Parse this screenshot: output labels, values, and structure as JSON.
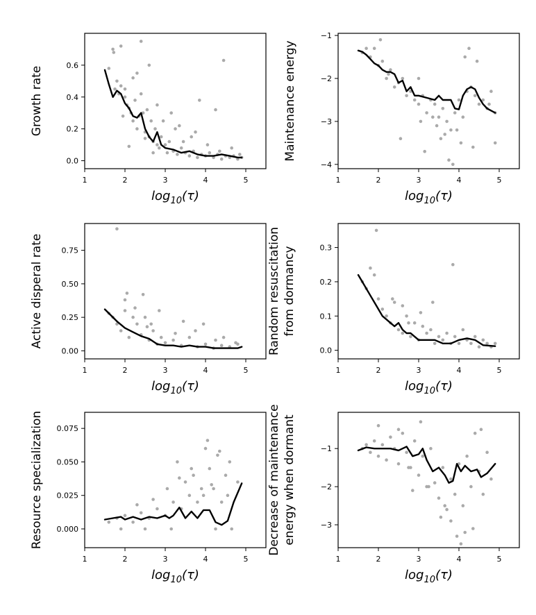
{
  "chart_data": [
    {
      "type": "scatter",
      "title": "",
      "xlabel": "log10(τ)",
      "ylabel": "Growth rate",
      "xlim": [
        1,
        5.5
      ],
      "ylim": [
        -0.05,
        0.8
      ],
      "xticks": [
        1,
        2,
        3,
        4,
        5
      ],
      "yticks": [
        0.0,
        0.2,
        0.4,
        0.6
      ],
      "ytick_labels": [
        "0.0",
        "0.2",
        "0.4",
        "0.6"
      ],
      "point_color": "#aaaaaa",
      "line_color": "#000000",
      "points": {
        "x": [
          1.6,
          1.7,
          1.75,
          1.8,
          1.85,
          1.9,
          1.95,
          2.0,
          2.05,
          2.1,
          2.15,
          2.2,
          2.25,
          2.3,
          2.35,
          2.4,
          2.45,
          2.5,
          2.55,
          2.6,
          2.65,
          2.7,
          2.75,
          2.8,
          2.85,
          2.9,
          3.0,
          3.05,
          3.1,
          3.2,
          3.3,
          3.4,
          3.5,
          3.6,
          3.7,
          3.8,
          3.9,
          4.0,
          4.1,
          4.2,
          4.3,
          4.4,
          4.5,
          4.6,
          4.7,
          4.8,
          4.9,
          1.72,
          1.9,
          2.1,
          2.6,
          2.3,
          2.95,
          3.25,
          4.45,
          3.85,
          4.25,
          2.0,
          2.4,
          2.7,
          3.15,
          3.45,
          3.75,
          4.05,
          4.35,
          4.65,
          4.85,
          2.2,
          2.5,
          2.8,
          3.35,
          3.65
        ],
        "y": [
          0.58,
          0.7,
          0.45,
          0.5,
          0.42,
          0.47,
          0.28,
          0.4,
          0.35,
          0.33,
          0.3,
          0.25,
          0.38,
          0.2,
          0.28,
          0.42,
          0.3,
          0.18,
          0.32,
          0.15,
          0.25,
          0.12,
          0.2,
          0.1,
          0.08,
          0.15,
          0.1,
          0.05,
          0.12,
          0.06,
          0.04,
          0.08,
          0.05,
          0.03,
          0.06,
          0.02,
          0.04,
          0.03,
          0.05,
          0.02,
          0.04,
          0.01,
          0.03,
          0.02,
          0.03,
          0.01,
          0.02,
          0.68,
          0.72,
          0.09,
          0.6,
          0.55,
          0.25,
          0.2,
          0.63,
          0.38,
          0.32,
          0.45,
          0.75,
          0.05,
          0.3,
          0.12,
          0.18,
          0.1,
          0.06,
          0.08,
          0.04,
          0.52,
          0.14,
          0.35,
          0.22,
          0.15
        ]
      },
      "trend": {
        "x": [
          1.5,
          1.6,
          1.7,
          1.8,
          1.9,
          2.0,
          2.1,
          2.2,
          2.3,
          2.4,
          2.5,
          2.6,
          2.7,
          2.8,
          2.9,
          3.0,
          3.2,
          3.4,
          3.6,
          3.8,
          4.0,
          4.2,
          4.4,
          4.6,
          4.8,
          4.9
        ],
        "y": [
          0.57,
          0.48,
          0.4,
          0.44,
          0.42,
          0.36,
          0.33,
          0.28,
          0.27,
          0.3,
          0.2,
          0.15,
          0.12,
          0.18,
          0.1,
          0.08,
          0.07,
          0.05,
          0.06,
          0.04,
          0.03,
          0.03,
          0.04,
          0.03,
          0.02,
          0.02
        ]
      }
    },
    {
      "type": "scatter",
      "title": "",
      "xlabel": "log10(τ)",
      "ylabel": "Maintenance energy",
      "xlim": [
        1,
        5.5
      ],
      "ylim": [
        -4.1,
        -0.95
      ],
      "xticks": [
        1,
        2,
        3,
        4,
        5
      ],
      "yticks": [
        -1,
        -2,
        -3,
        -4
      ],
      "ytick_labels": [
        "−1",
        "−2",
        "−3",
        "−4"
      ],
      "point_color": "#aaaaaa",
      "line_color": "#000000",
      "points": {
        "x": [
          1.6,
          1.7,
          1.8,
          1.9,
          2.0,
          2.1,
          2.2,
          2.3,
          2.4,
          2.5,
          2.6,
          2.7,
          2.8,
          2.9,
          3.0,
          3.1,
          3.2,
          3.3,
          3.4,
          3.5,
          3.6,
          3.7,
          3.8,
          3.9,
          4.0,
          4.1,
          4.2,
          4.3,
          4.4,
          4.5,
          4.6,
          4.7,
          4.8,
          4.9,
          2.05,
          3.05,
          3.55,
          3.75,
          3.95,
          4.15,
          4.35,
          2.55,
          3.35,
          3.85,
          4.05,
          4.25,
          4.75,
          2.25,
          3.15,
          3.65,
          4.45,
          4.9,
          3.0,
          3.45
        ],
        "y": [
          -1.4,
          -1.3,
          -1.5,
          -1.3,
          -1.7,
          -1.6,
          -2.0,
          -1.8,
          -2.2,
          -2.1,
          -2.0,
          -2.4,
          -2.3,
          -2.5,
          -2.6,
          -2.4,
          -2.8,
          -2.5,
          -2.6,
          -2.9,
          -2.7,
          -3.0,
          -3.2,
          -2.8,
          -2.5,
          -2.9,
          -2.3,
          -2.2,
          -2.4,
          -2.6,
          -2.5,
          -2.7,
          -2.3,
          -3.5,
          -1.1,
          -3.0,
          -3.4,
          -3.9,
          -3.2,
          -1.5,
          -3.6,
          -3.4,
          -2.9,
          -4.0,
          -3.5,
          -1.3,
          -2.6,
          -1.9,
          -3.7,
          -3.3,
          -1.6,
          -2.8,
          -2.0,
          -3.1
        ]
      },
      "trend": {
        "x": [
          1.5,
          1.6,
          1.7,
          1.8,
          1.9,
          2.0,
          2.1,
          2.2,
          2.3,
          2.4,
          2.5,
          2.6,
          2.7,
          2.8,
          2.9,
          3.0,
          3.2,
          3.4,
          3.5,
          3.6,
          3.8,
          3.9,
          4.0,
          4.1,
          4.2,
          4.3,
          4.4,
          4.5,
          4.6,
          4.7,
          4.8,
          4.9
        ],
        "y": [
          -1.35,
          -1.38,
          -1.45,
          -1.55,
          -1.65,
          -1.7,
          -1.8,
          -1.85,
          -1.85,
          -1.9,
          -2.1,
          -2.05,
          -2.3,
          -2.2,
          -2.4,
          -2.4,
          -2.45,
          -2.5,
          -2.4,
          -2.5,
          -2.5,
          -2.7,
          -2.72,
          -2.4,
          -2.25,
          -2.2,
          -2.25,
          -2.45,
          -2.6,
          -2.7,
          -2.75,
          -2.8
        ]
      }
    },
    {
      "type": "scatter",
      "title": "",
      "xlabel": "log10(τ)",
      "ylabel": "Active disperal rate",
      "xlim": [
        1,
        5.5
      ],
      "ylim": [
        -0.06,
        0.95
      ],
      "xticks": [
        1,
        2,
        3,
        4,
        5
      ],
      "yticks": [
        0.0,
        0.25,
        0.5,
        0.75
      ],
      "ytick_labels": [
        "0.00",
        "0.25",
        "0.50",
        "0.75"
      ],
      "point_color": "#aaaaaa",
      "line_color": "#000000",
      "points": {
        "x": [
          1.6,
          1.7,
          1.8,
          1.9,
          2.0,
          2.1,
          2.2,
          2.3,
          2.4,
          2.5,
          2.6,
          2.7,
          2.8,
          2.9,
          3.0,
          3.2,
          3.4,
          3.6,
          3.8,
          4.0,
          4.2,
          4.4,
          4.6,
          4.8,
          1.8,
          2.05,
          2.45,
          2.85,
          3.45,
          3.95,
          4.45,
          2.25,
          2.65,
          3.25,
          3.75,
          4.25,
          4.75,
          2.0,
          2.55
        ],
        "y": [
          0.28,
          0.25,
          0.2,
          0.15,
          0.3,
          0.1,
          0.25,
          0.2,
          0.12,
          0.25,
          0.08,
          0.15,
          0.05,
          0.1,
          0.06,
          0.08,
          0.04,
          0.1,
          0.03,
          0.05,
          0.02,
          0.04,
          0.03,
          0.05,
          0.91,
          0.43,
          0.42,
          0.3,
          0.22,
          0.2,
          0.1,
          0.32,
          0.2,
          0.13,
          0.15,
          0.08,
          0.06,
          0.38,
          0.18
        ]
      },
      "trend": {
        "x": [
          1.5,
          1.6,
          1.8,
          2.0,
          2.2,
          2.4,
          2.6,
          2.8,
          3.0,
          3.2,
          3.4,
          3.6,
          3.8,
          4.0,
          4.2,
          4.4,
          4.6,
          4.8,
          4.9
        ],
        "y": [
          0.31,
          0.28,
          0.22,
          0.17,
          0.14,
          0.11,
          0.09,
          0.05,
          0.04,
          0.04,
          0.03,
          0.04,
          0.03,
          0.03,
          0.02,
          0.02,
          0.02,
          0.02,
          0.03
        ]
      }
    },
    {
      "type": "scatter",
      "title": "",
      "xlabel": "log10(τ)",
      "ylabel": "Random resuscitation from dormancy",
      "xlim": [
        1,
        5.5
      ],
      "ylim": [
        -0.025,
        0.37
      ],
      "xticks": [
        1,
        2,
        3,
        4,
        5
      ],
      "yticks": [
        0.0,
        0.1,
        0.2,
        0.3
      ],
      "ytick_labels": [
        "0.0",
        "0.1",
        "0.2",
        "0.3"
      ],
      "point_color": "#aaaaaa",
      "line_color": "#000000",
      "points": {
        "x": [
          1.6,
          1.7,
          1.8,
          1.9,
          2.0,
          2.1,
          2.2,
          2.3,
          2.4,
          2.5,
          2.6,
          2.7,
          2.8,
          2.9,
          3.0,
          3.1,
          3.2,
          3.3,
          3.4,
          3.5,
          3.6,
          3.7,
          3.8,
          3.9,
          4.0,
          4.1,
          4.2,
          4.3,
          4.4,
          4.5,
          4.6,
          4.7,
          4.8,
          4.9,
          1.95,
          2.35,
          2.6,
          3.85,
          3.35,
          3.05,
          2.75
        ],
        "y": [
          0.2,
          0.18,
          0.24,
          0.22,
          0.15,
          0.12,
          0.1,
          0.08,
          0.14,
          0.06,
          0.05,
          0.1,
          0.04,
          0.08,
          0.03,
          0.07,
          0.05,
          0.06,
          0.02,
          0.04,
          0.03,
          0.05,
          0.02,
          0.04,
          0.02,
          0.06,
          0.03,
          0.02,
          0.04,
          0.01,
          0.03,
          0.02,
          0.01,
          0.02,
          0.35,
          0.15,
          0.13,
          0.25,
          0.14,
          0.11,
          0.08
        ]
      },
      "trend": {
        "x": [
          1.5,
          1.6,
          1.7,
          1.8,
          1.9,
          2.0,
          2.1,
          2.2,
          2.3,
          2.4,
          2.5,
          2.6,
          2.7,
          2.8,
          2.9,
          3.0,
          3.2,
          3.4,
          3.6,
          3.8,
          4.0,
          4.2,
          4.4,
          4.6,
          4.9
        ],
        "y": [
          0.22,
          0.2,
          0.18,
          0.16,
          0.14,
          0.12,
          0.1,
          0.09,
          0.08,
          0.07,
          0.08,
          0.06,
          0.05,
          0.05,
          0.04,
          0.03,
          0.03,
          0.03,
          0.02,
          0.02,
          0.03,
          0.035,
          0.03,
          0.015,
          0.012
        ]
      }
    },
    {
      "type": "scatter",
      "title": "",
      "xlabel": "log10(τ)",
      "ylabel": "Resource specialization",
      "xlim": [
        1,
        5.5
      ],
      "ylim": [
        -0.014,
        0.087
      ],
      "xticks": [
        1,
        2,
        3,
        4,
        5
      ],
      "yticks": [
        0.0,
        0.025,
        0.05,
        0.075
      ],
      "ytick_labels": [
        "0.000",
        "0.025",
        "0.050",
        "0.075"
      ],
      "point_color": "#aaaaaa",
      "line_color": "#000000",
      "points": {
        "x": [
          1.6,
          1.8,
          2.0,
          2.2,
          2.4,
          2.6,
          2.8,
          3.0,
          3.2,
          3.3,
          3.4,
          3.5,
          3.6,
          3.7,
          3.8,
          3.9,
          4.0,
          4.1,
          4.2,
          4.3,
          4.4,
          4.5,
          4.6,
          4.8,
          2.3,
          2.7,
          3.05,
          3.35,
          3.65,
          3.95,
          4.05,
          4.15,
          4.35,
          4.55,
          1.9,
          2.5,
          3.15,
          4.25,
          4.65
        ],
        "y": [
          0.005,
          0.008,
          0.01,
          0.005,
          0.012,
          0.008,
          0.015,
          0.01,
          0.02,
          0.05,
          0.015,
          0.035,
          0.025,
          0.04,
          0.02,
          0.03,
          0.06,
          0.045,
          0.03,
          0.055,
          0.02,
          0.04,
          0.05,
          0.035,
          0.018,
          0.022,
          0.03,
          0.038,
          0.045,
          0.025,
          0.066,
          0.033,
          0.058,
          0.025,
          0.0,
          0.0,
          0.0,
          0.0,
          0.0
        ]
      },
      "trend": {
        "x": [
          1.5,
          1.7,
          1.9,
          2.0,
          2.2,
          2.4,
          2.6,
          2.8,
          3.0,
          3.1,
          3.2,
          3.35,
          3.5,
          3.65,
          3.8,
          3.95,
          4.1,
          4.25,
          4.4,
          4.55,
          4.7,
          4.9
        ],
        "y": [
          0.007,
          0.008,
          0.009,
          0.007,
          0.009,
          0.007,
          0.009,
          0.008,
          0.01,
          0.008,
          0.01,
          0.016,
          0.008,
          0.013,
          0.008,
          0.014,
          0.014,
          0.005,
          0.003,
          0.006,
          0.02,
          0.034
        ]
      }
    },
    {
      "type": "scatter",
      "title": "",
      "xlabel": "log10(τ)",
      "ylabel": "Decrease of maintenance energy when dormant",
      "xlim": [
        1,
        5.5
      ],
      "ylim": [
        -3.6,
        -0.05
      ],
      "xticks": [
        1,
        2,
        3,
        4,
        5
      ],
      "yticks": [
        -1,
        -2,
        -3
      ],
      "ytick_labels": [
        "−1",
        "−2",
        "−3"
      ],
      "point_color": "#aaaaaa",
      "line_color": "#000000",
      "points": {
        "x": [
          1.6,
          1.7,
          1.8,
          1.9,
          2.0,
          2.1,
          2.2,
          2.3,
          2.4,
          2.5,
          2.6,
          2.7,
          2.8,
          2.9,
          3.0,
          3.1,
          3.2,
          3.3,
          3.4,
          3.5,
          3.6,
          3.7,
          3.8,
          3.9,
          4.0,
          4.1,
          4.2,
          4.3,
          4.4,
          4.5,
          4.6,
          4.7,
          4.8,
          2.0,
          2.5,
          3.05,
          3.55,
          3.8,
          4.05,
          4.35,
          4.55,
          3.25,
          3.65,
          3.95,
          4.15,
          2.75,
          2.85
        ],
        "y": [
          -1.0,
          -0.9,
          -1.1,
          -0.8,
          -1.2,
          -0.9,
          -1.3,
          -0.7,
          -1.0,
          -1.4,
          -0.6,
          -1.1,
          -1.5,
          -0.8,
          -1.7,
          -1.2,
          -2.0,
          -1.0,
          -1.9,
          -2.3,
          -1.5,
          -2.6,
          -1.8,
          -2.2,
          -1.4,
          -2.5,
          -1.2,
          -2.0,
          -0.6,
          -1.6,
          -2.2,
          -1.1,
          -1.8,
          -0.4,
          -0.5,
          -0.3,
          -2.8,
          -2.9,
          -3.5,
          -3.1,
          -0.5,
          -2.0,
          -2.5,
          -3.3,
          -3.2,
          -1.5,
          -2.1
        ]
      },
      "trend": {
        "x": [
          1.5,
          1.7,
          1.9,
          2.1,
          2.3,
          2.5,
          2.7,
          2.85,
          3.0,
          3.1,
          3.2,
          3.35,
          3.5,
          3.65,
          3.75,
          3.85,
          3.95,
          4.05,
          4.15,
          4.3,
          4.45,
          4.55,
          4.7,
          4.9
        ],
        "y": [
          -1.05,
          -0.97,
          -1.0,
          -1.0,
          -1.0,
          -1.05,
          -0.95,
          -1.2,
          -1.15,
          -1.0,
          -1.3,
          -1.6,
          -1.5,
          -1.7,
          -1.9,
          -1.85,
          -1.4,
          -1.6,
          -1.45,
          -1.6,
          -1.55,
          -1.75,
          -1.65,
          -1.4
        ]
      }
    }
  ]
}
